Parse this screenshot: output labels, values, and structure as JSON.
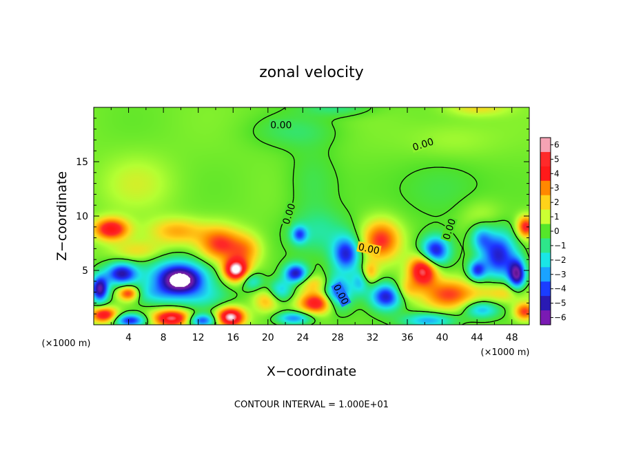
{
  "chart_data": {
    "type": "heatmap",
    "title": "zonal velocity",
    "xlabel": "X−coordinate",
    "ylabel": "Z−coordinate",
    "x_unit": "(×1000 m)",
    "y_unit": "(×1000 m)",
    "xlim": [
      0,
      50
    ],
    "ylim": [
      0,
      20
    ],
    "x_ticks": [
      4,
      8,
      12,
      16,
      20,
      24,
      28,
      32,
      36,
      40,
      44,
      48
    ],
    "y_ticks": [
      5,
      10,
      15
    ],
    "colorbar": {
      "ticks": [
        6,
        5,
        4,
        3,
        2,
        1,
        0,
        -1,
        -2,
        -3,
        -4,
        -5,
        -6
      ],
      "tick_labels": [
        "6",
        "5",
        "4",
        "3",
        "2",
        "1",
        "0",
        "−1",
        "−2",
        "−3",
        "−4",
        "−5",
        "−6"
      ],
      "colors": [
        "#f5a3b4",
        "#ff2a2a",
        "#ff1a1a",
        "#ff8800",
        "#ffd21a",
        "#ccff33",
        "#55e62a",
        "#2ee68a",
        "#1ae6e6",
        "#1aa3ff",
        "#1a3dff",
        "#2a1ab3",
        "#7a1ab3"
      ]
    },
    "contour_level_label": "0.00",
    "contour_interval_text": "CONTOUR INTERVAL = 1.000E+01",
    "blobs": [
      {
        "x": 2.0,
        "z": 8.8,
        "v": 4.6,
        "sx": 2.0,
        "sz": 1.0
      },
      {
        "x": 9.5,
        "z": 8.6,
        "v": 2.2,
        "sx": 3.2,
        "sz": 1.2
      },
      {
        "x": 14.5,
        "z": 7.4,
        "v": 3.4,
        "sx": 2.4,
        "sz": 1.6
      },
      {
        "x": 17.5,
        "z": 6.8,
        "v": 2.2,
        "sx": 1.8,
        "sz": 1.5
      },
      {
        "x": 16.3,
        "z": 5.0,
        "v": 5.8,
        "sx": 1.4,
        "sz": 1.0
      },
      {
        "x": 9.8,
        "z": 4.4,
        "v": -5.5,
        "sx": 3.4,
        "sz": 1.6
      },
      {
        "x": 10.0,
        "z": 4.0,
        "v": -2.8,
        "sx": 1.8,
        "sz": 0.9
      },
      {
        "x": 3.2,
        "z": 4.7,
        "v": -5.2,
        "sx": 1.8,
        "sz": 1.0
      },
      {
        "x": 0.7,
        "z": 3.3,
        "v": -6.0,
        "sx": 1.0,
        "sz": 1.2
      },
      {
        "x": 4.0,
        "z": 2.9,
        "v": 4.2,
        "sx": 1.2,
        "sz": 0.7
      },
      {
        "x": 7.0,
        "z": 2.8,
        "v": -1.8,
        "sx": 3.0,
        "sz": 1.0
      },
      {
        "x": 12.5,
        "z": 2.6,
        "v": -1.6,
        "sx": 3.2,
        "sz": 1.2
      },
      {
        "x": 1.2,
        "z": 0.9,
        "v": 4.5,
        "sx": 1.5,
        "sz": 0.7
      },
      {
        "x": 4.2,
        "z": 0.4,
        "v": -4.8,
        "sx": 1.8,
        "sz": 0.6
      },
      {
        "x": 9.0,
        "z": 0.6,
        "v": 5.2,
        "sx": 2.2,
        "sz": 0.8
      },
      {
        "x": 12.4,
        "z": 0.4,
        "v": -4.2,
        "sx": 1.6,
        "sz": 0.6
      },
      {
        "x": 15.7,
        "z": 0.7,
        "v": 6.0,
        "sx": 1.6,
        "sz": 0.9
      },
      {
        "x": 19.8,
        "z": 2.2,
        "v": 2.0,
        "sx": 1.4,
        "sz": 1.0
      },
      {
        "x": 18.2,
        "z": 4.0,
        "v": -2.2,
        "sx": 1.2,
        "sz": 0.8
      },
      {
        "x": 23.2,
        "z": 4.7,
        "v": -5.2,
        "sx": 1.3,
        "sz": 0.9
      },
      {
        "x": 23.6,
        "z": 8.3,
        "v": -3.4,
        "sx": 0.9,
        "sz": 0.8
      },
      {
        "x": 25.6,
        "z": 2.0,
        "v": 4.4,
        "sx": 2.0,
        "sz": 1.0
      },
      {
        "x": 25.2,
        "z": 3.8,
        "v": 1.8,
        "sx": 2.2,
        "sz": 0.8
      },
      {
        "x": 21.5,
        "z": 3.2,
        "v": -2.6,
        "sx": 1.4,
        "sz": 1.0
      },
      {
        "x": 23.0,
        "z": 0.6,
        "v": -3.6,
        "sx": 2.0,
        "sz": 0.6
      },
      {
        "x": 28.0,
        "z": 3.0,
        "v": -4.4,
        "sx": 1.6,
        "sz": 1.5
      },
      {
        "x": 29.0,
        "z": 6.5,
        "v": -4.8,
        "sx": 1.6,
        "sz": 1.6
      },
      {
        "x": 30.6,
        "z": 4.0,
        "v": -2.6,
        "sx": 1.0,
        "sz": 1.2
      },
      {
        "x": 31.6,
        "z": 4.8,
        "v": 2.2,
        "sx": 1.0,
        "sz": 1.0
      },
      {
        "x": 33.0,
        "z": 7.8,
        "v": 3.6,
        "sx": 2.2,
        "sz": 1.8
      },
      {
        "x": 33.6,
        "z": 2.6,
        "v": -5.0,
        "sx": 1.8,
        "sz": 1.2
      },
      {
        "x": 35.8,
        "z": 3.2,
        "v": 1.8,
        "sx": 1.4,
        "sz": 1.0
      },
      {
        "x": 37.8,
        "z": 5.0,
        "v": 5.2,
        "sx": 1.6,
        "sz": 1.4
      },
      {
        "x": 39.2,
        "z": 6.8,
        "v": -5.0,
        "sx": 1.6,
        "sz": 1.3
      },
      {
        "x": 40.8,
        "z": 2.8,
        "v": 3.4,
        "sx": 3.0,
        "sz": 1.4
      },
      {
        "x": 38.5,
        "z": 0.4,
        "v": -3.2,
        "sx": 3.0,
        "sz": 0.7
      },
      {
        "x": 44.0,
        "z": 5.0,
        "v": -4.0,
        "sx": 1.0,
        "sz": 0.9
      },
      {
        "x": 44.5,
        "z": 8.0,
        "v": -2.6,
        "sx": 1.2,
        "sz": 1.2
      },
      {
        "x": 46.5,
        "z": 6.4,
        "v": -5.0,
        "sx": 2.0,
        "sz": 2.2
      },
      {
        "x": 48.6,
        "z": 4.6,
        "v": -6.0,
        "sx": 1.0,
        "sz": 1.4
      },
      {
        "x": 47.0,
        "z": 3.0,
        "v": 2.0,
        "sx": 2.8,
        "sz": 1.0
      },
      {
        "x": 44.5,
        "z": 1.4,
        "v": -3.0,
        "sx": 2.0,
        "sz": 0.8
      },
      {
        "x": 49.6,
        "z": 9.0,
        "v": 4.0,
        "sx": 1.0,
        "sz": 1.0
      },
      {
        "x": 49.5,
        "z": 1.2,
        "v": 3.6,
        "sx": 1.2,
        "sz": 0.8
      },
      {
        "x": 5.0,
        "z": 6.8,
        "v": 1.6,
        "sx": 3.0,
        "sz": 1.0
      },
      {
        "x": 25.0,
        "z": 13.0,
        "v": -0.8,
        "sx": 3.0,
        "sz": 3.5
      },
      {
        "x": 26.0,
        "z": 8.5,
        "v": -1.4,
        "sx": 3.5,
        "sz": 2.0
      },
      {
        "x": 40.0,
        "z": 12.5,
        "v": -0.8,
        "sx": 5.0,
        "sz": 3.0
      },
      {
        "x": 41.0,
        "z": 17.0,
        "v": 0.6,
        "sx": 5.0,
        "sz": 1.8
      },
      {
        "x": 23.0,
        "z": 17.8,
        "v": -0.8,
        "sx": 5.0,
        "sz": 1.5
      },
      {
        "x": 28.0,
        "z": 20.0,
        "v": -1.2,
        "sx": 4.0,
        "sz": 0.8
      },
      {
        "x": 44.0,
        "z": 20.0,
        "v": 1.5,
        "sx": 3.5,
        "sz": 0.8
      },
      {
        "x": 5.0,
        "z": 13.0,
        "v": 0.9,
        "sx": 4.0,
        "sz": 2.5
      },
      {
        "x": 44.5,
        "z": 10.0,
        "v": 0.8,
        "sx": 2.5,
        "sz": 1.5
      }
    ]
  }
}
